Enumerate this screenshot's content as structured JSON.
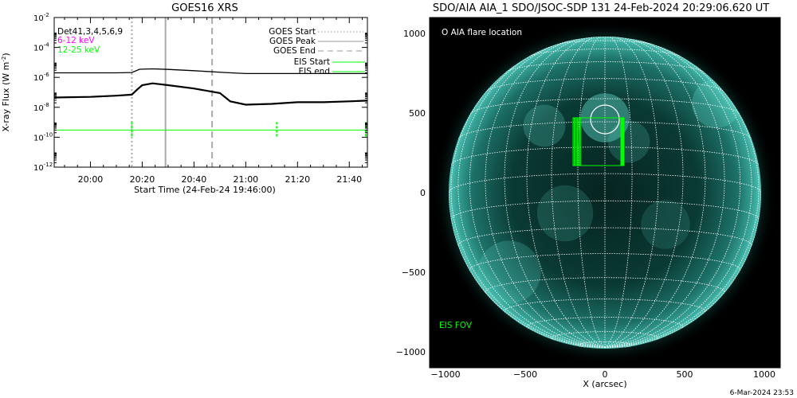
{
  "chart_data": [
    {
      "type": "line",
      "title": "GOES16 XRS",
      "xlabel": "Start Time (24-Feb-24 19:46:00)",
      "ylabel": "X-ray Flux (W m",
      "ylabel_sup": "-2",
      "ylabel_close": ")",
      "y_scale": "log",
      "ylim": [
        1e-12,
        0.01
      ],
      "y_ticks": [
        {
          "v": 1e-12,
          "base": "10",
          "exp": "-12"
        },
        {
          "v": 1e-10,
          "base": "10",
          "exp": "-10"
        },
        {
          "v": 1e-08,
          "base": "10",
          "exp": "-8"
        },
        {
          "v": 1e-06,
          "base": "10",
          "exp": "-6"
        },
        {
          "v": 0.0001,
          "base": "10",
          "exp": "-4"
        },
        {
          "v": 0.01,
          "base": "10",
          "exp": "-2"
        }
      ],
      "x_start": "19:46",
      "x_end": "21:47",
      "x_ticks": [
        "20:00",
        "20:20",
        "20:40",
        "21:00",
        "21:20",
        "21:40"
      ],
      "det_label": "Det41,3,4,5,6,9",
      "series": [
        {
          "name": "6-12 keV",
          "color": "#ff00ff",
          "x": [
            "19:46",
            "20:10",
            "20:16",
            "20:19",
            "20:24",
            "20:30",
            "20:40",
            "20:52",
            "21:00",
            "21:10",
            "21:20",
            "21:30",
            "21:47"
          ],
          "values": [
            2e-06,
            2e-06,
            2.1e-06,
            3.5e-06,
            3.7e-06,
            3.4e-06,
            2.8e-06,
            2.1e-06,
            1.8e-06,
            1.8e-06,
            1.8e-06,
            1.8e-06,
            1.8e-06
          ]
        },
        {
          "name": "12-25 keV",
          "color": "#00ff00",
          "x": [
            "19:46",
            "20:00",
            "20:10",
            "20:16",
            "20:18",
            "20:20",
            "20:24",
            "20:30",
            "20:40",
            "20:50",
            "20:54",
            "21:00",
            "21:10",
            "21:20",
            "21:30",
            "21:40",
            "21:47"
          ],
          "values": [
            4.5e-08,
            5e-08,
            6e-08,
            7e-08,
            1.5e-07,
            3e-07,
            4e-07,
            3e-07,
            1.8e-07,
            9e-08,
            2.5e-08,
            1.5e-08,
            1.7e-08,
            2.2e-08,
            2.2e-08,
            2.5e-08,
            2.8e-08
          ]
        }
      ],
      "vlines": [
        {
          "label": "GOES Start",
          "time": "20:16",
          "style": "dotted",
          "color": "#aaaaaa"
        },
        {
          "label": "GOES Peak",
          "time": "20:29",
          "style": "solid",
          "color": "#aaaaaa"
        },
        {
          "label": "GOES End",
          "time": "20:47",
          "style": "dashed",
          "color": "#aaaaaa"
        }
      ],
      "eis": {
        "start_label": "EIS Start",
        "end_label": "EIS end",
        "color": "#00ff00",
        "level": 3e-10,
        "markers": [
          "20:16",
          "21:12",
          "21:47"
        ]
      }
    },
    {
      "type": "scatter",
      "title": "SDO/AIA AIA_1 SDO/JSOC-SDP 131 24-Feb-2024 20:29:06.620 UT",
      "xlabel": "X (arcsec)",
      "ylabel": "",
      "xlim": [
        -1100,
        1100
      ],
      "ylim": [
        -1100,
        1100
      ],
      "x_ticks": [
        -1000,
        -500,
        0,
        500,
        1000
      ],
      "y_ticks": [
        -1000,
        -500,
        0,
        500,
        1000
      ],
      "x_tick_labels": [
        "−1000",
        "−500",
        "0",
        "500",
        "1000"
      ],
      "y_tick_labels": [
        "−1000",
        "−500",
        "0",
        "500",
        "1000"
      ],
      "solar_radius": 980,
      "flare": {
        "label": "O AIA flare location",
        "x": 0,
        "y": 460,
        "r": 90
      },
      "eis_fov": {
        "label": "EIS FOV",
        "x1": -200,
        "x2": 100,
        "y1": 170,
        "y2": 470,
        "color": "#00ff00"
      }
    }
  ],
  "footer": {
    "timestamp": "6-Mar-2024 23:53"
  }
}
